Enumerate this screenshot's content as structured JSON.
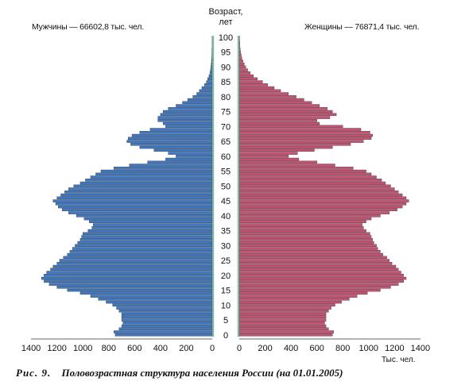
{
  "caption": {
    "figure_label": "Рис. 9.",
    "text": "Половозрастная структура населения России (на 01.01.2005)"
  },
  "chart_data": {
    "type": "bar",
    "orientation": "horizontal-pyramid",
    "center_label_line1": "Возраст,",
    "center_label_line2": "лет",
    "unit_label": "Тыс. чел.",
    "age_ticks": [
      0,
      5,
      10,
      15,
      20,
      25,
      30,
      35,
      40,
      45,
      50,
      55,
      60,
      65,
      70,
      75,
      80,
      85,
      90,
      95,
      100
    ],
    "x_ticks": [
      0,
      200,
      400,
      600,
      800,
      1000,
      1200,
      1400
    ],
    "xlim": [
      0,
      1400
    ],
    "grid": false,
    "colors": {
      "male": "#3f78c4",
      "female": "#c85273",
      "center": "#7fb8a0",
      "bar_stroke": "#2a2a2a"
    },
    "series": [
      {
        "name": "Мужчины — 66602,8 тыс. чел.",
        "side": "left",
        "values": [
          750,
          760,
          720,
          700,
          690,
          700,
          700,
          700,
          720,
          740,
          770,
          820,
          880,
          940,
          1020,
          1120,
          1200,
          1260,
          1300,
          1320,
          1300,
          1280,
          1250,
          1230,
          1200,
          1180,
          1150,
          1120,
          1100,
          1080,
          1060,
          1040,
          1020,
          1010,
          1000,
          960,
          930,
          920,
          950,
          990,
          1050,
          1110,
          1160,
          1190,
          1210,
          1230,
          1200,
          1170,
          1140,
          1110,
          1070,
          1020,
          980,
          940,
          900,
          860,
          760,
          640,
          500,
          360,
          280,
          340,
          450,
          560,
          630,
          660,
          650,
          620,
          560,
          480,
          360,
          380,
          420,
          420,
          400,
          380,
          340,
          280,
          230,
          190,
          150,
          120,
          100,
          80,
          60,
          45,
          35,
          25,
          18,
          14,
          10,
          8,
          6,
          4,
          3,
          2,
          2,
          1,
          1,
          1,
          1
        ]
      },
      {
        "name": "Женщины — 76871,4 тыс. чел.",
        "side": "right",
        "values": [
          720,
          730,
          690,
          670,
          660,
          670,
          670,
          670,
          690,
          710,
          740,
          790,
          850,
          910,
          990,
          1090,
          1170,
          1230,
          1270,
          1290,
          1270,
          1250,
          1230,
          1210,
          1180,
          1160,
          1140,
          1110,
          1090,
          1070,
          1060,
          1040,
          1030,
          1020,
          1010,
          980,
          960,
          950,
          980,
          1020,
          1090,
          1160,
          1220,
          1260,
          1290,
          1310,
          1290,
          1260,
          1230,
          1200,
          1170,
          1130,
          1100,
          1060,
          1020,
          980,
          880,
          740,
          600,
          460,
          380,
          450,
          580,
          720,
          860,
          960,
          1020,
          1030,
          1010,
          940,
          800,
          620,
          600,
          700,
          750,
          720,
          680,
          620,
          560,
          500,
          440,
          380,
          320,
          270,
          220,
          180,
          140,
          110,
          85,
          65,
          50,
          38,
          28,
          20,
          15,
          10,
          7,
          5,
          4,
          3,
          2
        ]
      }
    ]
  }
}
